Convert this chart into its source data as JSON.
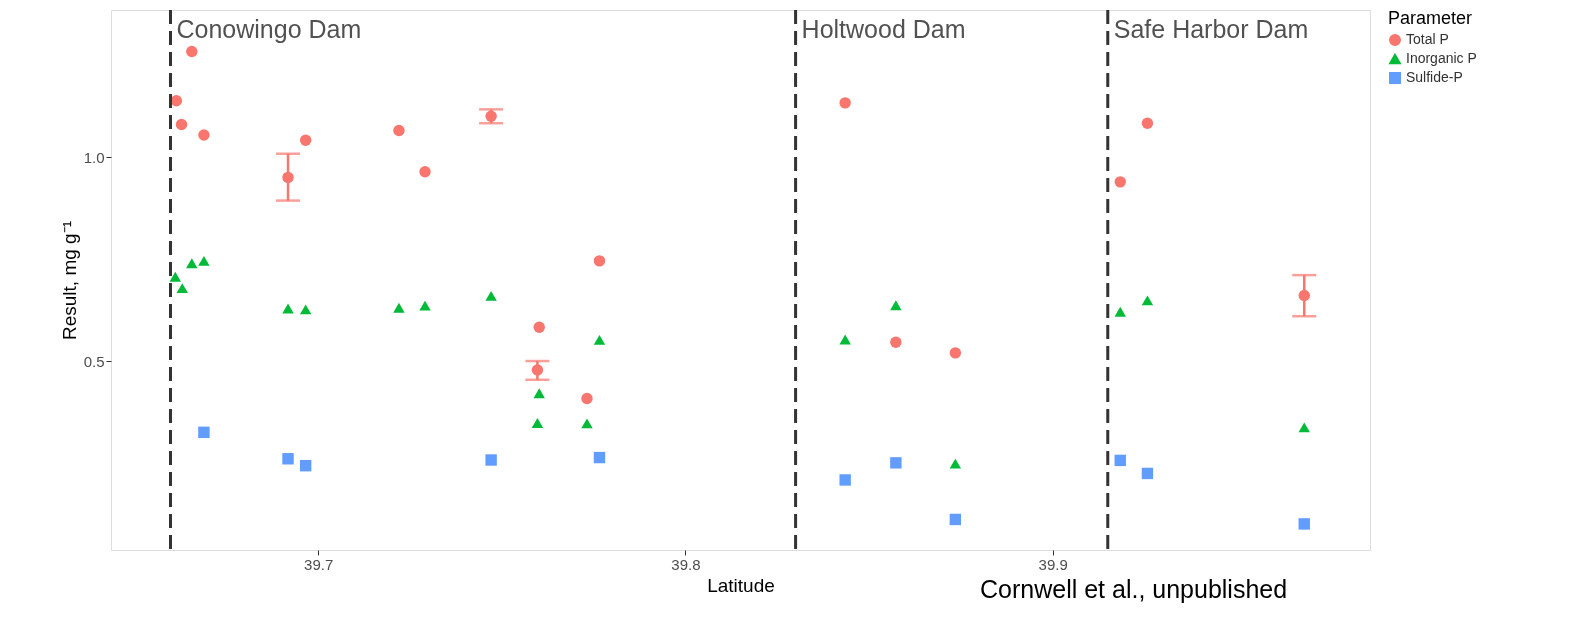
{
  "chart_data": {
    "type": "scatter",
    "xlabel": "Latitude",
    "ylabel": "Result, mg g⁻¹",
    "legend_title": "Parameter",
    "xlim": [
      39.6436,
      39.9864
    ],
    "xticks": [
      39.7,
      39.8,
      39.9
    ],
    "ylim": [
      0.036,
      1.362
    ],
    "yticks": [
      0.5,
      {
        "value": 1.0,
        "label": "1.0"
      }
    ],
    "grid": false,
    "legend": "right",
    "series": [
      {
        "name": "Total P",
        "color": "#f8766d",
        "marker": "circle",
        "x": [
          39.6614,
          39.6628,
          39.6656,
          39.6689,
          39.6918,
          39.6966,
          39.722,
          39.7291,
          39.7471,
          39.7602,
          39.7597,
          39.7732,
          39.7766,
          39.8435,
          39.8573,
          39.8735,
          39.9184,
          39.9258,
          39.9685
        ],
        "values": [
          1.139,
          1.081,
          1.26,
          1.055,
          0.951,
          1.042,
          1.066,
          0.965,
          1.101,
          0.583,
          0.478,
          0.408,
          0.746,
          1.134,
          0.546,
          0.52,
          0.94,
          1.084,
          0.661
        ],
        "errors": [
          null,
          null,
          null,
          null,
          [
            0.894,
            1.009
          ],
          null,
          null,
          null,
          [
            1.084,
            1.118
          ],
          null,
          [
            0.454,
            0.5
          ],
          null,
          null,
          null,
          null,
          null,
          null,
          null,
          [
            0.61,
            0.711
          ]
        ]
      },
      {
        "name": "Inorganic P",
        "color": "#00ba38",
        "marker": "triangle",
        "x": [
          39.6611,
          39.663,
          39.6656,
          39.6689,
          39.6918,
          39.6966,
          39.722,
          39.7291,
          39.7471,
          39.7602,
          39.7597,
          39.7732,
          39.7766,
          39.8435,
          39.8573,
          39.8735,
          39.9184,
          39.9258,
          39.9685
        ],
        "values": [
          0.707,
          0.679,
          0.74,
          0.746,
          0.629,
          0.627,
          0.631,
          0.636,
          0.66,
          0.421,
          0.348,
          0.347,
          0.552,
          0.553,
          0.637,
          0.248,
          0.621,
          0.649,
          0.337
        ]
      },
      {
        "name": "Sulfide-P",
        "color": "#619cff",
        "marker": "square",
        "x": [
          39.6689,
          39.6918,
          39.6966,
          39.7471,
          39.7766,
          39.8435,
          39.8573,
          39.8735,
          39.9184,
          39.9258,
          39.9685
        ],
        "values": [
          0.325,
          0.26,
          0.243,
          0.257,
          0.263,
          0.208,
          0.25,
          0.111,
          0.256,
          0.224,
          0.1
        ]
      }
    ],
    "ref_lines": [
      {
        "axis": "x",
        "value": 39.6598,
        "label": "Conowingo Dam",
        "color": "#333333",
        "line_style": "dashed"
      },
      {
        "axis": "x",
        "value": 39.83,
        "label": "Holtwood Dam",
        "color": "#333333",
        "line_style": "dashed"
      },
      {
        "axis": "x",
        "value": 39.915,
        "label": "Safe Harbor Dam",
        "color": "#333333",
        "line_style": "dashed"
      }
    ],
    "annotations": [
      "Cornwell et al., unpublished"
    ]
  }
}
